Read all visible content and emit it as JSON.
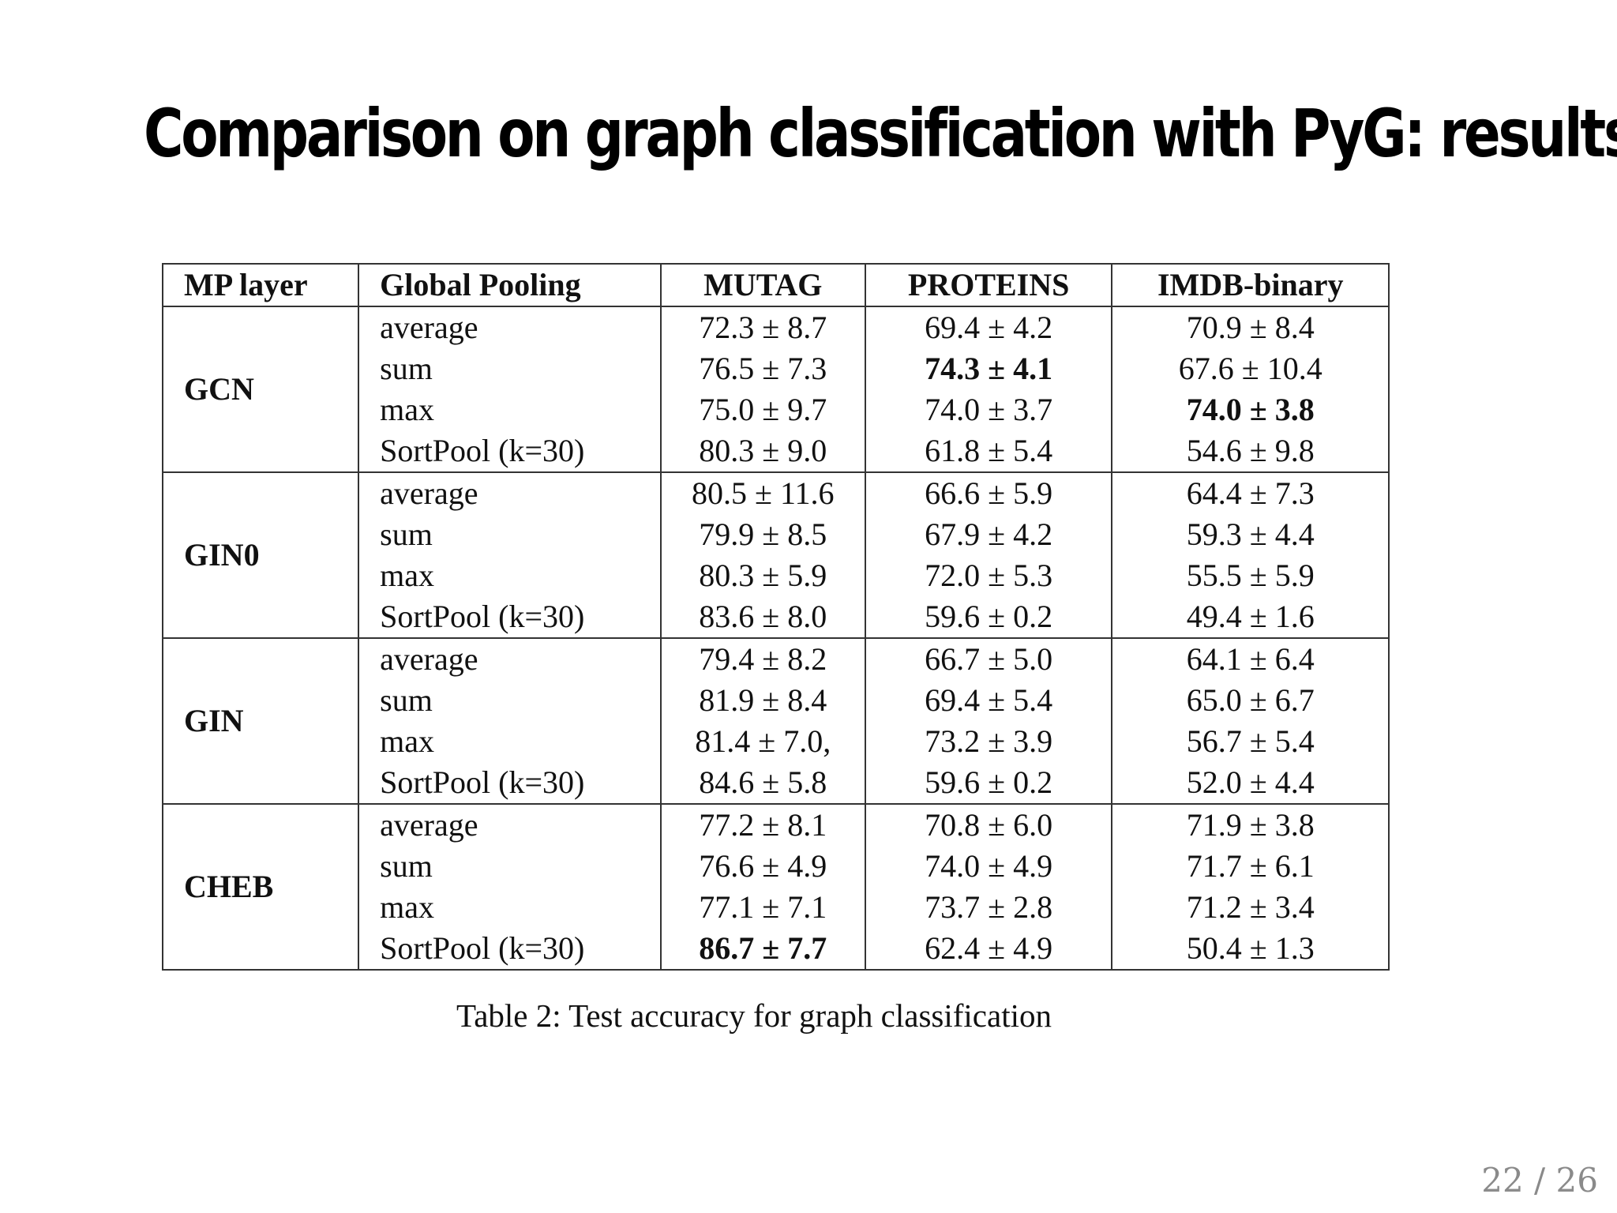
{
  "slide": {
    "title": "Comparison on graph classification with PyG: results",
    "page_number": "22 / 26"
  },
  "table": {
    "headers": {
      "mp_layer": "MP layer",
      "global_pooling": "Global Pooling",
      "mutag": "MUTAG",
      "proteins": "PROTEINS",
      "imdb": "IMDB-binary"
    },
    "caption": "Table 2: Test accuracy for graph classification",
    "groups": [
      {
        "mp_layer": "GCN",
        "rows": [
          {
            "pooling": "average",
            "mutag": "72.3 ± 8.7",
            "mutag_bold": false,
            "proteins": "69.4 ± 4.2",
            "proteins_bold": false,
            "imdb": "70.9 ± 8.4",
            "imdb_bold": false
          },
          {
            "pooling": "sum",
            "mutag": "76.5 ± 7.3",
            "mutag_bold": false,
            "proteins": "74.3 ± 4.1",
            "proteins_bold": true,
            "imdb": "67.6 ± 10.4",
            "imdb_bold": false
          },
          {
            "pooling": "max",
            "mutag": "75.0 ± 9.7",
            "mutag_bold": false,
            "proteins": "74.0 ± 3.7",
            "proteins_bold": false,
            "imdb": "74.0 ± 3.8",
            "imdb_bold": true
          },
          {
            "pooling": "SortPool (k=30)",
            "mutag": "80.3 ± 9.0",
            "mutag_bold": false,
            "proteins": "61.8 ± 5.4",
            "proteins_bold": false,
            "imdb": "54.6 ± 9.8",
            "imdb_bold": false
          }
        ]
      },
      {
        "mp_layer": "GIN0",
        "rows": [
          {
            "pooling": "average",
            "mutag": "80.5 ± 11.6",
            "mutag_bold": false,
            "proteins": "66.6 ± 5.9",
            "proteins_bold": false,
            "imdb": "64.4 ± 7.3",
            "imdb_bold": false
          },
          {
            "pooling": "sum",
            "mutag": "79.9 ± 8.5",
            "mutag_bold": false,
            "proteins": "67.9 ± 4.2",
            "proteins_bold": false,
            "imdb": "59.3 ± 4.4",
            "imdb_bold": false
          },
          {
            "pooling": "max",
            "mutag": "80.3 ± 5.9",
            "mutag_bold": false,
            "proteins": "72.0 ± 5.3",
            "proteins_bold": false,
            "imdb": "55.5 ± 5.9",
            "imdb_bold": false
          },
          {
            "pooling": "SortPool (k=30)",
            "mutag": "83.6 ± 8.0",
            "mutag_bold": false,
            "proteins": "59.6 ± 0.2",
            "proteins_bold": false,
            "imdb": "49.4 ± 1.6",
            "imdb_bold": false
          }
        ]
      },
      {
        "mp_layer": "GIN",
        "rows": [
          {
            "pooling": "average",
            "mutag": "79.4 ± 8.2",
            "mutag_bold": false,
            "proteins": "66.7 ± 5.0",
            "proteins_bold": false,
            "imdb": "64.1 ± 6.4",
            "imdb_bold": false
          },
          {
            "pooling": "sum",
            "mutag": "81.9 ± 8.4",
            "mutag_bold": false,
            "proteins": "69.4 ± 5.4",
            "proteins_bold": false,
            "imdb": "65.0 ± 6.7",
            "imdb_bold": false
          },
          {
            "pooling": "max",
            "mutag": "81.4 ± 7.0,",
            "mutag_bold": false,
            "proteins": "73.2 ± 3.9",
            "proteins_bold": false,
            "imdb": "56.7 ± 5.4",
            "imdb_bold": false
          },
          {
            "pooling": "SortPool (k=30)",
            "mutag": "84.6 ± 5.8",
            "mutag_bold": false,
            "proteins": "59.6 ± 0.2",
            "proteins_bold": false,
            "imdb": "52.0 ± 4.4",
            "imdb_bold": false
          }
        ]
      },
      {
        "mp_layer": "CHEB",
        "rows": [
          {
            "pooling": "average",
            "mutag": "77.2 ± 8.1",
            "mutag_bold": false,
            "proteins": "70.8 ± 6.0",
            "proteins_bold": false,
            "imdb": "71.9 ± 3.8",
            "imdb_bold": false
          },
          {
            "pooling": "sum",
            "mutag": "76.6 ± 4.9",
            "mutag_bold": false,
            "proteins": "74.0 ± 4.9",
            "proteins_bold": false,
            "imdb": "71.7 ± 6.1",
            "imdb_bold": false
          },
          {
            "pooling": "max",
            "mutag": "77.1 ± 7.1",
            "mutag_bold": false,
            "proteins": "73.7 ± 2.8",
            "proteins_bold": false,
            "imdb": "71.2 ± 3.4",
            "imdb_bold": false
          },
          {
            "pooling": "SortPool (k=30)",
            "mutag": "86.7 ± 7.7",
            "mutag_bold": true,
            "proteins": "62.4 ± 4.9",
            "proteins_bold": false,
            "imdb": "50.4 ± 1.3",
            "imdb_bold": false
          }
        ]
      }
    ]
  }
}
